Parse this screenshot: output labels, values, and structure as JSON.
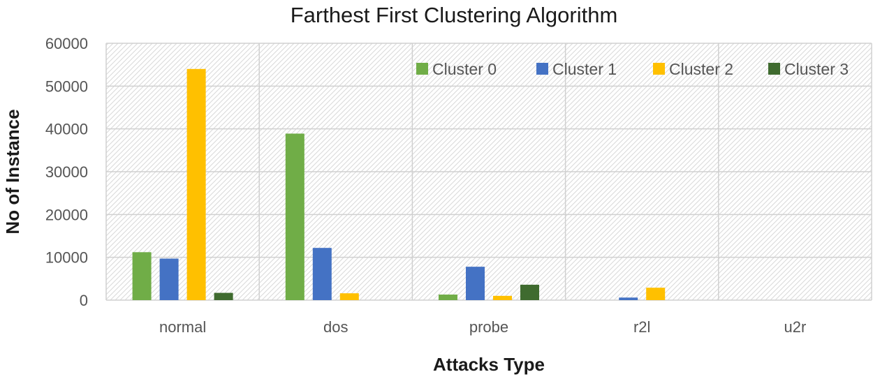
{
  "chart_data": {
    "type": "bar",
    "title": "Farthest First Clustering Algorithm",
    "xlabel": "Attacks Type",
    "ylabel": "No of Instance",
    "categories": [
      "normal",
      "dos",
      "probe",
      "r2l",
      "u2r"
    ],
    "ylim": [
      0,
      60000
    ],
    "yticks": [
      "0",
      "10000",
      "20000",
      "30000",
      "40000",
      "50000",
      "60000"
    ],
    "grid": true,
    "legend_position": "top-right",
    "series": [
      {
        "name": "Cluster 0",
        "color": "#70ad47",
        "values": [
          11200,
          38900,
          1300,
          0,
          0
        ]
      },
      {
        "name": "Cluster 1",
        "color": "#4472c4",
        "values": [
          9700,
          12200,
          7800,
          600,
          0
        ]
      },
      {
        "name": "Cluster 2",
        "color": "#ffc000",
        "values": [
          54000,
          1600,
          1000,
          2900,
          0
        ]
      },
      {
        "name": "Cluster 3",
        "color": "#3f6b2f",
        "values": [
          1700,
          0,
          3600,
          0,
          0
        ]
      }
    ]
  }
}
